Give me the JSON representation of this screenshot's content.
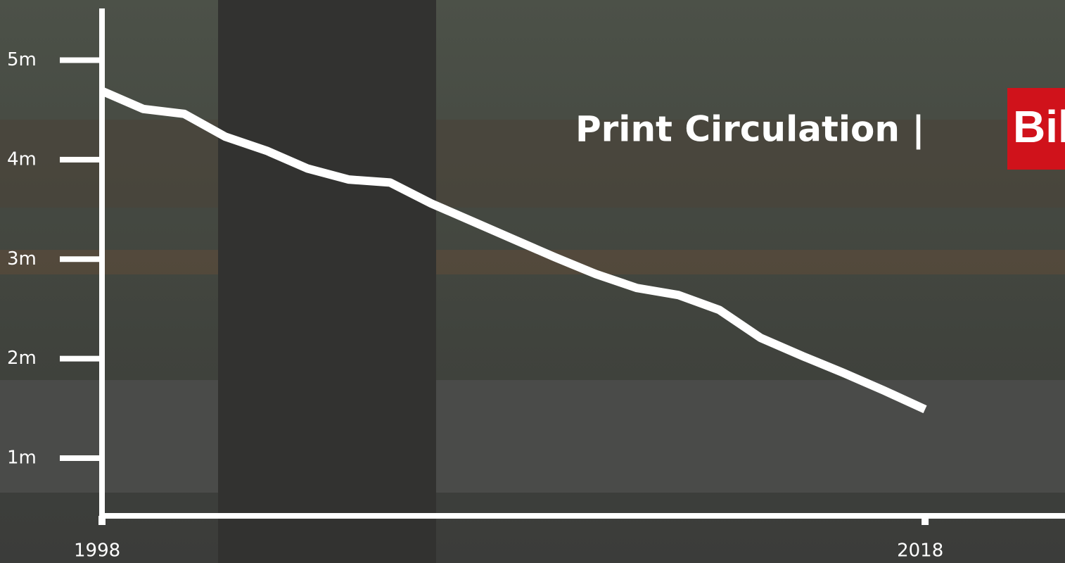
{
  "chart_data": {
    "type": "line",
    "title": "Print Circulation |",
    "logo": "Bild",
    "x": [
      1998,
      1999,
      2000,
      2001,
      2002,
      2003,
      2004,
      2005,
      2006,
      2007,
      2008,
      2009,
      2010,
      2011,
      2012,
      2013,
      2014,
      2015,
      2016,
      2017,
      2018
    ],
    "values": [
      4.69,
      4.51,
      4.46,
      4.23,
      4.09,
      3.91,
      3.8,
      3.77,
      3.56,
      3.38,
      3.2,
      3.02,
      2.85,
      2.71,
      2.64,
      2.49,
      2.21,
      2.03,
      1.86,
      1.68,
      1.49
    ],
    "color": "#ffffff",
    "xlim": [
      1998,
      2021.4
    ],
    "xticks": [
      1998,
      2018
    ],
    "ylim": [
      0.42,
      5.52
    ],
    "yticks": [
      {
        "value": 1,
        "label": "1m"
      },
      {
        "value": 2,
        "label": "2m"
      },
      {
        "value": 3,
        "label": "3m"
      },
      {
        "value": 4,
        "label": "4m"
      },
      {
        "value": 5,
        "label": "5m"
      }
    ]
  }
}
